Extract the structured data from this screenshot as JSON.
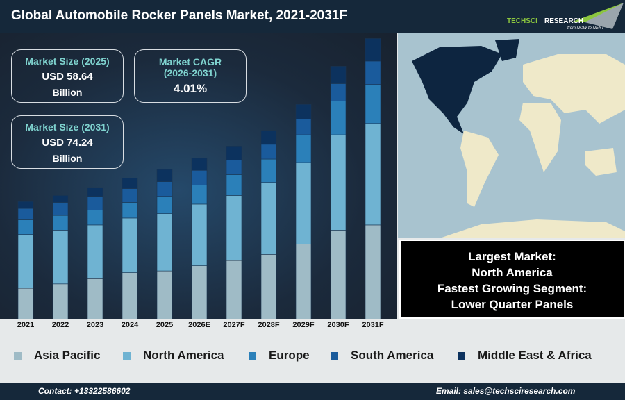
{
  "title": "Global Automobile Rocker Panels Market, 2021-2031F",
  "logo": {
    "name": "TechSci Research",
    "tagline": "from NOW to NEXT"
  },
  "kpis": {
    "size2025": {
      "label": "Market Size (2025)",
      "value": "USD 58.64",
      "unit": "Billion"
    },
    "cagr": {
      "label": "Market CAGR",
      "period": "(2026-2031)",
      "value": "4.01%"
    },
    "size2031": {
      "label": "Market Size (2031)",
      "value": "USD 74.24",
      "unit": "Billion"
    }
  },
  "info": {
    "line1": "Largest Market:",
    "line2": "North America",
    "line3": "Fastest Growing Segment:",
    "line4": "Lower Quarter Panels"
  },
  "footer": {
    "contact": "Contact: +13322586602",
    "email": "Email: sales@techsciresearch.com"
  },
  "chart_data": {
    "type": "bar",
    "stacked": true,
    "grid": false,
    "legend": "bottom",
    "yaxis_shown": false,
    "categories": [
      "2021",
      "2022",
      "2023",
      "2024",
      "2025",
      "2026E",
      "2027F",
      "2028F",
      "2029F",
      "2030F",
      "2031F"
    ],
    "ylim": [
      0,
      330
    ],
    "series": [
      {
        "name": "Asia Pacific",
        "color": "#9fbbc6",
        "values": [
          36,
          41,
          47,
          54,
          56,
          62,
          68,
          75,
          87,
          103,
          109
        ]
      },
      {
        "name": "North America",
        "color": "#6fb3d2",
        "values": [
          62,
          62,
          62,
          63,
          66,
          71,
          75,
          83,
          94,
          110,
          117
        ]
      },
      {
        "name": "Europe",
        "color": "#2b80b9",
        "values": [
          17,
          17,
          17,
          18,
          20,
          22,
          24,
          27,
          32,
          39,
          45
        ]
      },
      {
        "name": "South America",
        "color": "#1a5b9c",
        "values": [
          13,
          15,
          16,
          16,
          17,
          17,
          17,
          17,
          18,
          20,
          27
        ]
      },
      {
        "name": "Middle East & Africa",
        "color": "#0c325e",
        "values": [
          8,
          8,
          10,
          12,
          14,
          14,
          16,
          16,
          17,
          20,
          26
        ]
      }
    ]
  }
}
